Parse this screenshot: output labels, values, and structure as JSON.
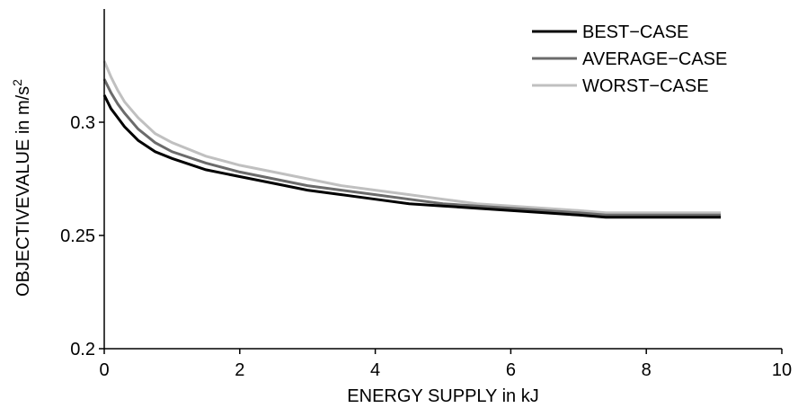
{
  "chart_data": {
    "type": "line",
    "xlabel": "ENERGY SUPPLY in kJ",
    "ylabel": "OBJECTIVEVALUE in m/s",
    "ylabel_superscript": "2",
    "xlim": [
      0,
      10
    ],
    "ylim": [
      0.2,
      0.35
    ],
    "xticks": [
      0,
      2,
      4,
      6,
      8,
      10
    ],
    "xtick_labels": [
      "0",
      "2",
      "4",
      "6",
      "8",
      "10"
    ],
    "yticks": [
      0.2,
      0.25,
      0.3
    ],
    "ytick_labels": [
      "0.2",
      "0.25",
      "0.3"
    ],
    "grid": false,
    "legend_position": "top-right",
    "x": [
      0,
      0.1,
      0.2,
      0.3,
      0.5,
      0.75,
      1,
      1.5,
      2,
      2.5,
      3,
      3.5,
      4,
      4.5,
      5,
      5.5,
      6,
      6.5,
      7,
      7.4,
      8,
      8.5,
      9.1
    ],
    "series": [
      {
        "name": "BEST−CASE",
        "color": "#000000",
        "values": [
          0.312,
          0.306,
          0.302,
          0.298,
          0.292,
          0.287,
          0.284,
          0.279,
          0.276,
          0.273,
          0.27,
          0.268,
          0.266,
          0.264,
          0.263,
          0.262,
          0.261,
          0.26,
          0.259,
          0.258,
          0.258,
          0.258,
          0.258
        ]
      },
      {
        "name": "AVERAGE−CASE",
        "color": "#6b6b6b",
        "values": [
          0.319,
          0.313,
          0.308,
          0.304,
          0.297,
          0.291,
          0.287,
          0.282,
          0.278,
          0.275,
          0.272,
          0.27,
          0.268,
          0.266,
          0.264,
          0.263,
          0.262,
          0.261,
          0.26,
          0.259,
          0.259,
          0.259,
          0.259
        ]
      },
      {
        "name": "WORST−CASE",
        "color": "#c0c0c0",
        "values": [
          0.327,
          0.32,
          0.314,
          0.309,
          0.302,
          0.295,
          0.291,
          0.285,
          0.281,
          0.278,
          0.275,
          0.272,
          0.27,
          0.268,
          0.266,
          0.264,
          0.263,
          0.262,
          0.261,
          0.26,
          0.26,
          0.26,
          0.26
        ]
      }
    ]
  }
}
